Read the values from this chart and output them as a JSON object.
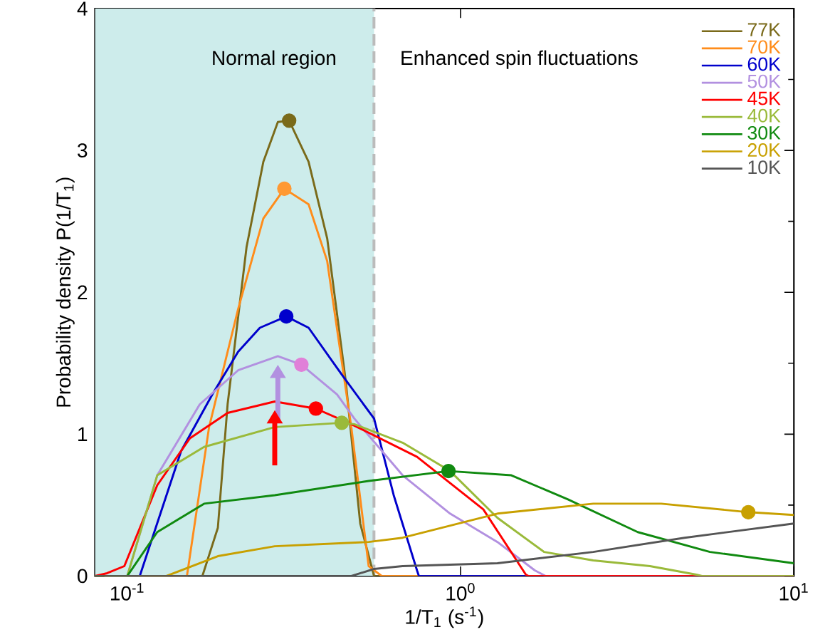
{
  "chart_data": {
    "type": "line",
    "xlabel": "1/T$_{1}$ (s$^{-1}$)",
    "ylabel": "Probability density P(1/T$_{1}$)",
    "log": "x",
    "grid": false,
    "legend": "top right",
    "line_style": "solid",
    "xlim": [
      0.08,
      10
    ],
    "ylim": [
      0,
      4
    ],
    "xticks": [
      {
        "value": 0.1,
        "label": "10$^{-1}$"
      },
      {
        "value": 1,
        "label": "10$^{0}$"
      },
      {
        "value": 10,
        "label": "10$^{1}$"
      }
    ],
    "yticks": [
      0,
      1,
      2,
      3,
      4
    ],
    "bands": [
      {
        "axis": "x",
        "from": 0.08,
        "to": 0.55,
        "color": "#cdeceb"
      }
    ],
    "ref_lines": [
      {
        "axis": "x",
        "value": 0.55,
        "color": "#bbbbbb",
        "line_style": "dashed"
      }
    ],
    "annotations": [
      "Normal region",
      "Enhanced spin fluctuations"
    ],
    "series": [
      {
        "name": "77K",
        "color": "#7a6a1a",
        "x": [
          0.08,
          0.168,
          0.187,
          0.2,
          0.228,
          0.256,
          0.283,
          0.306,
          0.35,
          0.398,
          0.452,
          0.5,
          0.55,
          10
        ],
        "values": [
          0,
          0,
          0.34,
          1.21,
          2.32,
          2.92,
          3.2,
          3.21,
          2.92,
          2.38,
          1.38,
          0.37,
          0,
          0
        ]
      },
      {
        "name": "70K",
        "color": "#ff8c1a",
        "x": [
          0.08,
          0.151,
          0.176,
          0.215,
          0.256,
          0.296,
          0.35,
          0.398,
          0.47,
          0.53,
          0.58,
          10
        ],
        "values": [
          0,
          0,
          1.05,
          1.88,
          2.52,
          2.73,
          2.62,
          2.22,
          1.05,
          0.07,
          0,
          0
        ]
      },
      {
        "name": "60K",
        "color": "#0000cc",
        "x": [
          0.08,
          0.109,
          0.145,
          0.18,
          0.215,
          0.25,
          0.3,
          0.35,
          0.44,
          0.55,
          0.63,
          0.74,
          0.75,
          10
        ],
        "values": [
          0,
          0,
          0.88,
          1.28,
          1.58,
          1.75,
          1.83,
          1.75,
          1.42,
          1.11,
          0.57,
          0.04,
          0,
          0
        ]
      },
      {
        "name": "50K",
        "color": "#b290e0",
        "x": [
          0.08,
          0.1,
          0.123,
          0.165,
          0.215,
          0.283,
          0.333,
          0.426,
          0.48,
          0.67,
          0.93,
          1.29,
          1.67,
          1.8,
          10
        ],
        "values": [
          0,
          0,
          0.71,
          1.21,
          1.45,
          1.55,
          1.49,
          1.28,
          1.11,
          0.71,
          0.44,
          0.24,
          0.04,
          0,
          0
        ]
      },
      {
        "name": "45K",
        "color": "#ff0000",
        "x": [
          0.08,
          0.087,
          0.098,
          0.123,
          0.154,
          0.2,
          0.277,
          0.368,
          0.44,
          0.48,
          0.74,
          1.17,
          1.57,
          1.6,
          10
        ],
        "values": [
          0,
          0.02,
          0.07,
          0.64,
          0.97,
          1.15,
          1.23,
          1.18,
          1.1,
          1.06,
          0.84,
          0.47,
          0.01,
          0,
          0
        ]
      },
      {
        "name": "40K",
        "color": "#9aba3a",
        "x": [
          0.08,
          0.1,
          0.123,
          0.17,
          0.277,
          0.44,
          0.48,
          0.67,
          0.93,
          1.29,
          1.78,
          2.5,
          3.7,
          5.1,
          5.3,
          10
        ],
        "values": [
          0,
          0,
          0.71,
          0.91,
          1.05,
          1.08,
          1.07,
          0.94,
          0.74,
          0.41,
          0.17,
          0.11,
          0.07,
          0.01,
          0,
          0
        ]
      },
      {
        "name": "30K",
        "color": "#108a10",
        "x": [
          0.08,
          0.1,
          0.123,
          0.17,
          0.277,
          0.53,
          0.92,
          1.42,
          2.1,
          3.4,
          5.6,
          10
        ],
        "values": [
          0,
          0,
          0.31,
          0.51,
          0.57,
          0.67,
          0.74,
          0.71,
          0.54,
          0.31,
          0.17,
          0.09
        ]
      },
      {
        "name": "20K",
        "color": "#c8a000",
        "x": [
          0.08,
          0.131,
          0.187,
          0.277,
          0.53,
          0.67,
          1.29,
          2.5,
          4.0,
          7.3,
          10
        ],
        "values": [
          0,
          0,
          0.14,
          0.21,
          0.24,
          0.27,
          0.44,
          0.51,
          0.51,
          0.45,
          0.43
        ]
      },
      {
        "name": "10K",
        "color": "#555555",
        "x": [
          0.08,
          0.47,
          0.55,
          0.67,
          1.29,
          2.5,
          4.7,
          10
        ],
        "values": [
          0,
          0,
          0.05,
          0.07,
          0.09,
          0.17,
          0.27,
          0.37
        ]
      },
      {
        "type": "scatter",
        "marker": "circle",
        "x": [
          0.306,
          0.296,
          0.3,
          0.333,
          0.368,
          0.44,
          0.92,
          7.3
        ],
        "values": [
          3.21,
          2.73,
          1.83,
          1.49,
          1.18,
          1.08,
          0.74,
          0.45
        ],
        "colors": [
          "#7a6a1a",
          "#ff9933",
          "#0000cc",
          "#e080d8",
          "#ff0000",
          "#9aba3a",
          "#108a10",
          "#c8a000"
        ]
      }
    ]
  }
}
